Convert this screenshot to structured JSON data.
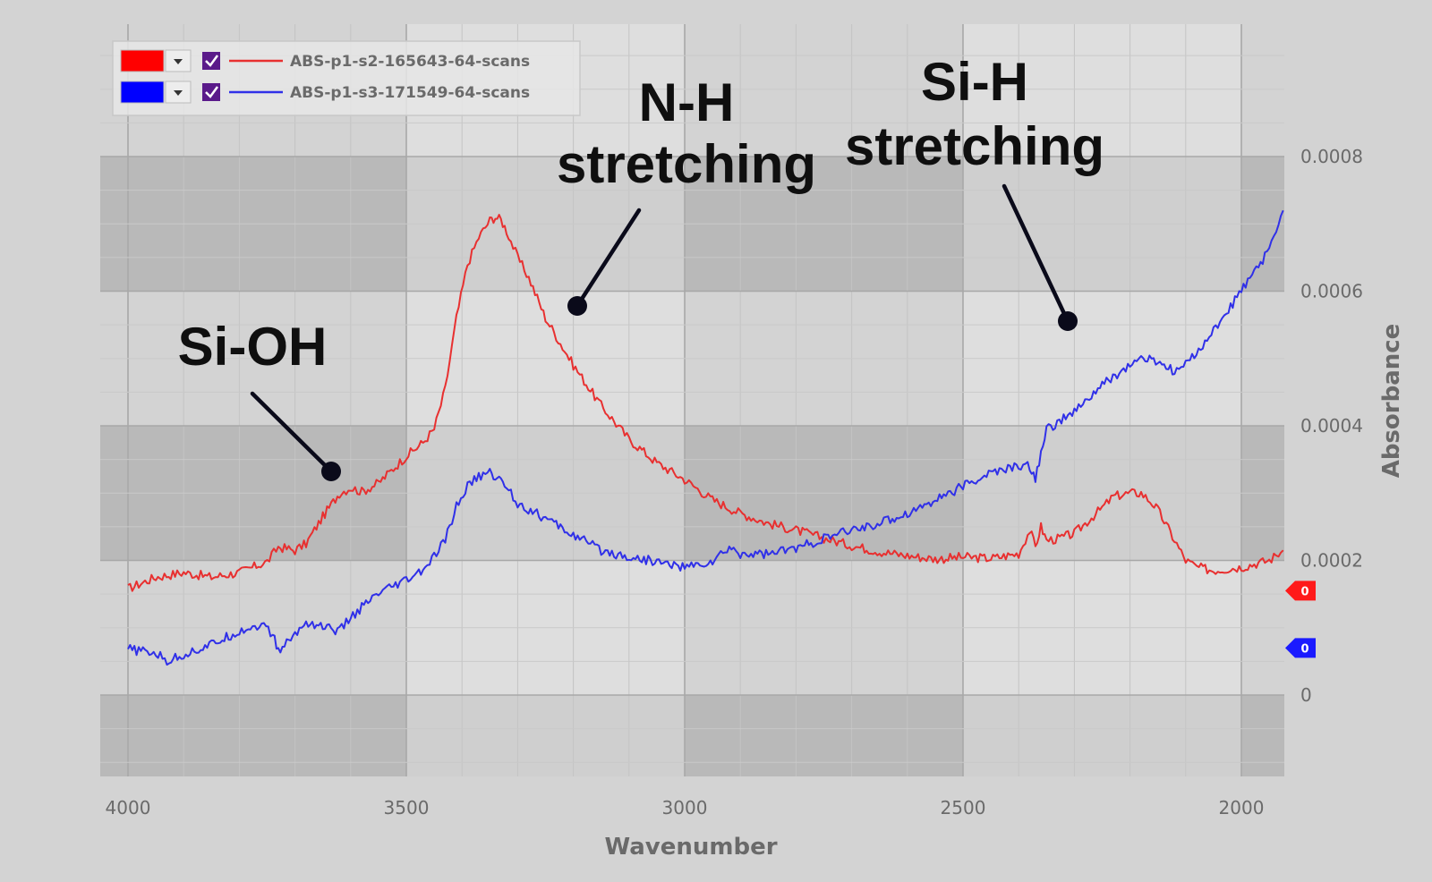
{
  "chart_data": {
    "type": "line",
    "xlabel": "Wavenumber",
    "ylabel": "Absorbance",
    "xlim": [
      4050,
      1925
    ],
    "ylim": [
      -0.00012,
      0.001
    ],
    "x_ticks": [
      4000,
      3500,
      3000,
      2500,
      2000
    ],
    "x_tick_labels": [
      "4000",
      "3500",
      "3000",
      "2500",
      "2000"
    ],
    "y_ticks": [
      0,
      0.0002,
      0.0004,
      0.0006,
      0.0008
    ],
    "y_tick_labels": [
      "0",
      "0.0002",
      "0.0004",
      "0.0006",
      "0.0008"
    ],
    "grid": true,
    "legend": "top-left",
    "series": [
      {
        "name": "ABS-p1-s2-165643-64-scans",
        "color": "#e83030",
        "marker_label": "0",
        "marker_value": 0.000155,
        "x": [
          4000,
          3950,
          3900,
          3850,
          3800,
          3750,
          3730,
          3700,
          3680,
          3650,
          3620,
          3600,
          3580,
          3550,
          3500,
          3470,
          3450,
          3430,
          3410,
          3390,
          3370,
          3350,
          3340,
          3330,
          3320,
          3300,
          3280,
          3250,
          3200,
          3150,
          3100,
          3050,
          3000,
          2950,
          2900,
          2850,
          2800,
          2750,
          2700,
          2650,
          2600,
          2550,
          2500,
          2450,
          2400,
          2380,
          2370,
          2360,
          2350,
          2330,
          2300,
          2250,
          2230,
          2200,
          2180,
          2160,
          2150,
          2120,
          2100,
          2080,
          2050,
          2000,
          1950,
          1925
        ],
        "y": [
          0.000158,
          0.000175,
          0.000182,
          0.000175,
          0.000182,
          0.000198,
          0.00022,
          0.000215,
          0.000225,
          0.000265,
          0.0003,
          0.000308,
          0.000302,
          0.000315,
          0.000355,
          0.000375,
          0.000395,
          0.000455,
          0.00056,
          0.00064,
          0.00068,
          0.000705,
          0.00071,
          0.000706,
          0.00069,
          0.00065,
          0.00062,
          0.00056,
          0.00049,
          0.00043,
          0.00038,
          0.000345,
          0.00032,
          0.00029,
          0.00027,
          0.000255,
          0.000245,
          0.000233,
          0.000222,
          0.000213,
          0.000207,
          0.000202,
          0.000205,
          0.000203,
          0.00021,
          0.000245,
          0.00022,
          0.00025,
          0.00023,
          0.000232,
          0.00024,
          0.000278,
          0.000295,
          0.0003,
          0.0003,
          0.000285,
          0.000275,
          0.00023,
          0.0002,
          0.00019,
          0.000185,
          0.00019,
          0.0002,
          0.000215
        ]
      },
      {
        "name": "ABS-p1-s3-171549-64-scans",
        "color": "#3030e8",
        "marker_label": "0",
        "marker_value": 7e-05,
        "x": [
          4000,
          3950,
          3930,
          3900,
          3850,
          3800,
          3760,
          3740,
          3730,
          3700,
          3680,
          3650,
          3620,
          3600,
          3580,
          3550,
          3500,
          3470,
          3450,
          3430,
          3410,
          3390,
          3370,
          3350,
          3340,
          3330,
          3320,
          3300,
          3250,
          3200,
          3150,
          3100,
          3050,
          3000,
          2980,
          2950,
          2920,
          2900,
          2850,
          2800,
          2750,
          2700,
          2650,
          2600,
          2550,
          2500,
          2450,
          2400,
          2380,
          2370,
          2360,
          2350,
          2300,
          2250,
          2200,
          2180,
          2150,
          2120,
          2100,
          2050,
          2000,
          1950,
          1925
        ],
        "y": [
          6.8e-05,
          6.2e-05,
          5e-05,
          6e-05,
          7.5e-05,
          9.5e-05,
          0.000105,
          9e-05,
          6.5e-05,
          9e-05,
          0.000108,
          0.000102,
          9.5e-05,
          0.000115,
          0.00013,
          0.00015,
          0.00017,
          0.000185,
          0.000205,
          0.00023,
          0.00028,
          0.00031,
          0.000325,
          0.00033,
          0.000325,
          0.000318,
          0.00031,
          0.000285,
          0.000262,
          0.000238,
          0.000215,
          0.000205,
          0.000198,
          0.00019,
          0.000192,
          0.000198,
          0.000218,
          0.00021,
          0.00021,
          0.000218,
          0.000232,
          0.000245,
          0.000255,
          0.00027,
          0.00029,
          0.00031,
          0.00033,
          0.00034,
          0.00034,
          0.00032,
          0.00036,
          0.000395,
          0.00042,
          0.00046,
          0.00049,
          0.0005,
          0.000495,
          0.00048,
          0.00049,
          0.00054,
          0.0006,
          0.00066,
          0.00072
        ]
      }
    ],
    "annotations": [
      {
        "text_lines": [
          "Si-OH"
        ],
        "x": 3620,
        "y": 0.00033
      },
      {
        "text_lines": [
          "N-H",
          "stretching"
        ],
        "x": 3195,
        "y": 0.00058
      },
      {
        "text_lines": [
          "Si-H",
          "stretching"
        ],
        "x": 2310,
        "y": 0.000555
      }
    ]
  },
  "legend_items": [
    {
      "swatch_color": "#ff0000",
      "label": "ABS-p1-s2-165643-64-scans",
      "line_color": "#e83030"
    },
    {
      "swatch_color": "#0000ff",
      "label": "ABS-p1-s3-171549-64-scans",
      "line_color": "#3030e8"
    }
  ]
}
